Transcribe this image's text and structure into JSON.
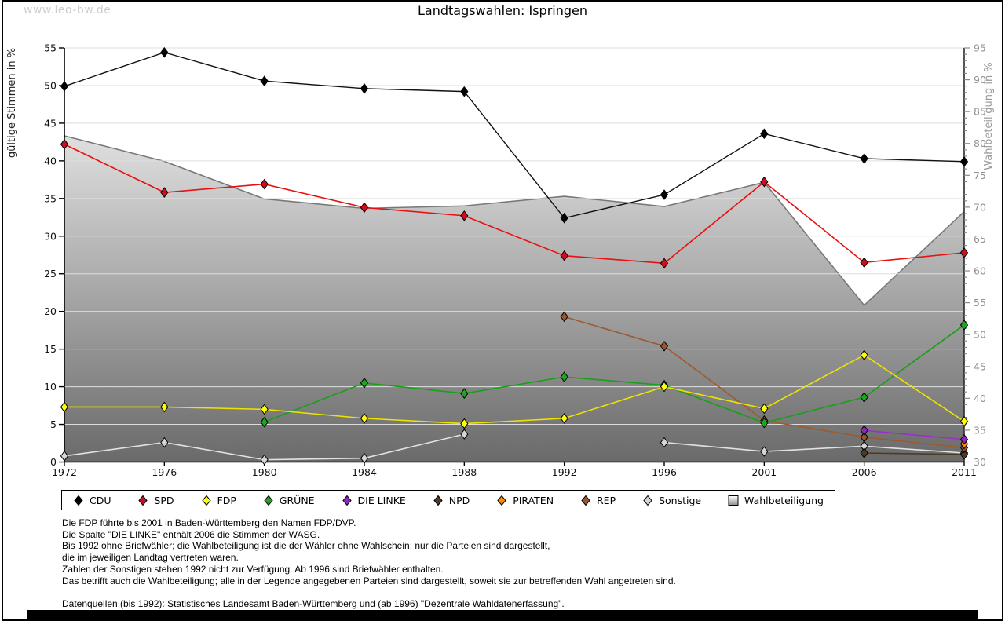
{
  "watermark": "www.leo-bw.de",
  "title": "Landtagswahlen: Ispringen",
  "chart_data": {
    "type": "line",
    "x_categories": [
      "1972",
      "1976",
      "1980",
      "1984",
      "1988",
      "1992",
      "1996",
      "2001",
      "2006",
      "2011"
    ],
    "left_axis": {
      "label": "gültige Stimmen in %",
      "min": 0,
      "max": 55,
      "major_tick": 5
    },
    "right_axis": {
      "label": "Wahlbeteiligung in %",
      "min": 30,
      "max": 95,
      "major_tick": 5,
      "minor_tick": 1
    },
    "grid": true,
    "legend_position": "bottom",
    "series": [
      {
        "name": "CDU",
        "axis": "left",
        "type": "line",
        "line_color": "#111111",
        "marker_color": "#000000",
        "values": [
          49.9,
          54.4,
          50.6,
          49.6,
          49.2,
          32.4,
          35.5,
          43.6,
          40.3,
          39.9
        ]
      },
      {
        "name": "SPD",
        "axis": "left",
        "type": "line",
        "line_color": "#e81010",
        "marker_color": "#cc0f1e",
        "values": [
          42.2,
          35.8,
          36.9,
          33.8,
          32.7,
          27.4,
          26.4,
          37.2,
          26.5,
          27.8
        ]
      },
      {
        "name": "FDP",
        "axis": "left",
        "type": "line",
        "line_color": "#ece400",
        "marker_color": "#ffff00",
        "values": [
          7.3,
          7.3,
          7.0,
          5.8,
          5.1,
          5.8,
          10.0,
          7.1,
          14.2,
          5.4
        ]
      },
      {
        "name": "GRÜNE",
        "axis": "left",
        "type": "line",
        "line_color": "#17a017",
        "marker_color": "#1ea61e",
        "values": [
          null,
          null,
          5.3,
          10.5,
          9.1,
          11.3,
          10.2,
          5.2,
          8.6,
          18.2
        ]
      },
      {
        "name": "DIE LINKE",
        "axis": "left",
        "type": "line",
        "line_color": "#9b30c9",
        "marker_color": "#8d28bd",
        "values": [
          null,
          null,
          null,
          null,
          null,
          null,
          null,
          null,
          4.2,
          3.0
        ]
      },
      {
        "name": "NPD",
        "axis": "left",
        "type": "line",
        "line_color": "#4f3824",
        "marker_color": "#503a26",
        "values": [
          null,
          null,
          null,
          null,
          null,
          null,
          null,
          null,
          1.2,
          1.0
        ]
      },
      {
        "name": "PIRATEN",
        "axis": "left",
        "type": "line",
        "line_color": "#f08800",
        "marker_color": "#f78c00",
        "values": [
          null,
          null,
          null,
          null,
          null,
          null,
          null,
          null,
          null,
          2.4
        ]
      },
      {
        "name": "REP",
        "axis": "left",
        "type": "line",
        "line_color": "#9c5a30",
        "marker_color": "#99552b",
        "values": [
          null,
          null,
          null,
          null,
          null,
          19.3,
          15.4,
          5.5,
          3.3,
          1.9
        ]
      },
      {
        "name": "Sonstige",
        "axis": "left",
        "type": "line",
        "line_color": "#e2e2e2",
        "marker_color": "#d6d6d6",
        "values": [
          0.8,
          2.6,
          0.3,
          0.5,
          3.7,
          null,
          2.6,
          1.4,
          2.1,
          1.2
        ]
      },
      {
        "name": "Wahlbeteiligung",
        "axis": "right",
        "type": "area",
        "line_color": "#787878",
        "fill_gradient": [
          "#ffffff",
          "#6a6a6a"
        ],
        "values": [
          81.2,
          77.2,
          71.3,
          69.8,
          70.2,
          71.7,
          70.1,
          73.9,
          54.6,
          69.3
        ]
      }
    ]
  },
  "legend": {
    "items": [
      {
        "label": "CDU",
        "marker": "diamond",
        "color": "#000000"
      },
      {
        "label": "SPD",
        "marker": "diamond",
        "color": "#cc0f1e"
      },
      {
        "label": "FDP",
        "marker": "diamond",
        "color": "#ffff00"
      },
      {
        "label": "GRÜNE",
        "marker": "diamond",
        "color": "#1ea61e"
      },
      {
        "label": "DIE LINKE",
        "marker": "diamond",
        "color": "#8d28bd"
      },
      {
        "label": "NPD",
        "marker": "diamond",
        "color": "#503a26"
      },
      {
        "label": "PIRATEN",
        "marker": "diamond",
        "color": "#f78c00"
      },
      {
        "label": "REP",
        "marker": "diamond",
        "color": "#99552b"
      },
      {
        "label": "Sonstige",
        "marker": "diamond",
        "color": "#d6d6d6"
      },
      {
        "label": "Wahlbeteiligung",
        "marker": "square-gradient",
        "color": "#909090"
      }
    ]
  },
  "footnotes": {
    "lines": [
      "Die FDP führte bis 2001 in Baden-Württemberg den Namen FDP/DVP.",
      "Die Spalte \"DIE LINKE\" enthält 2006 die Stimmen der WASG.",
      "Bis 1992 ohne Briefwähler; die Wahlbeteiligung ist die der Wähler ohne Wahlschein; nur die Parteien sind dargestellt,",
      "die im jeweiligen Landtag vertreten waren.",
      "Zahlen der Sonstigen stehen 1992 nicht zur Verfügung. Ab 1996 sind Briefwähler enthalten.",
      "Das betrifft auch die Wahlbeteiligung; alle in der Legende angegebenen Parteien sind dargestellt, soweit sie zur betreffenden Wahl angetreten sind.",
      "",
      "Datenquellen (bis 1992): Statistisches Landesamt Baden-Württemberg und (ab 1996) \"Dezentrale Wahldatenerfassung\"."
    ]
  }
}
